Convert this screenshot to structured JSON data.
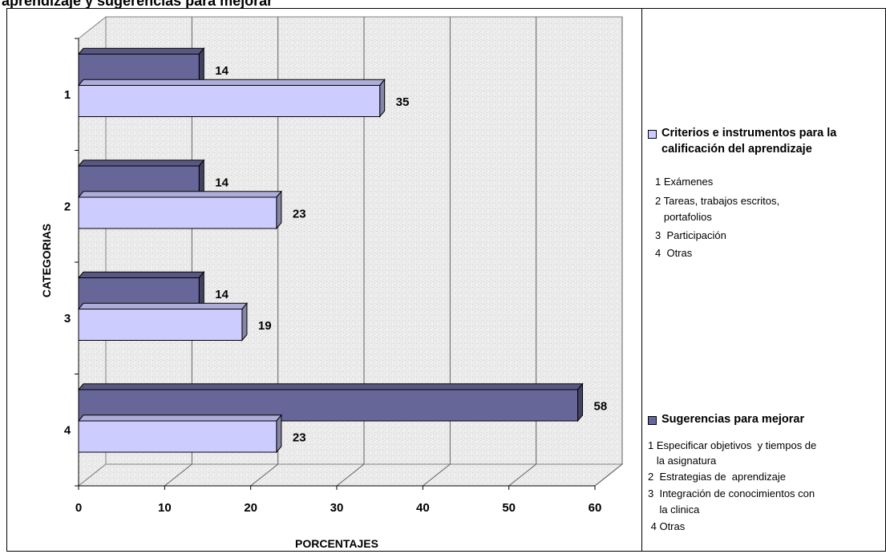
{
  "chart_title": "aprendizaje y sugerencias para mejorar",
  "chart_data": {
    "type": "bar",
    "orientation": "horizontal",
    "three_d": true,
    "categories": [
      "1",
      "2",
      "3",
      "4"
    ],
    "series": [
      {
        "name": "Criterios e instrumentos para la calificación del aprendizaje",
        "values": [
          35,
          23,
          19,
          23
        ],
        "color": "#ccccff"
      },
      {
        "name": "Sugerencias para mejorar",
        "values": [
          14,
          14,
          14,
          58
        ],
        "color": "#666699"
      }
    ],
    "xlabel": "PORCENTAJES",
    "ylabel": "CATEGORIAS",
    "xlim": [
      0,
      60
    ],
    "xticks": [
      "0",
      "10",
      "20",
      "30",
      "40",
      "50",
      "60"
    ],
    "grid": true,
    "legend": "right"
  },
  "legend": {
    "series1": {
      "title_line1": "Criterios e instrumentos para la",
      "title_line2": "calificación del aprendizaje",
      "items": [
        "1 Exámenes",
        "2 Tareas, trabajos escritos,",
        "   portafolios",
        "3  Participación",
        "4  Otras"
      ]
    },
    "series2": {
      "title": "Sugerencias para mejorar",
      "items": [
        "1 Especificar objetivos  y tiempos de",
        "   la asignatura",
        "2  Estrategias de  aprendizaje",
        "3  Integración de conocimientos con",
        "    la clinica",
        " 4 Otras"
      ]
    }
  }
}
